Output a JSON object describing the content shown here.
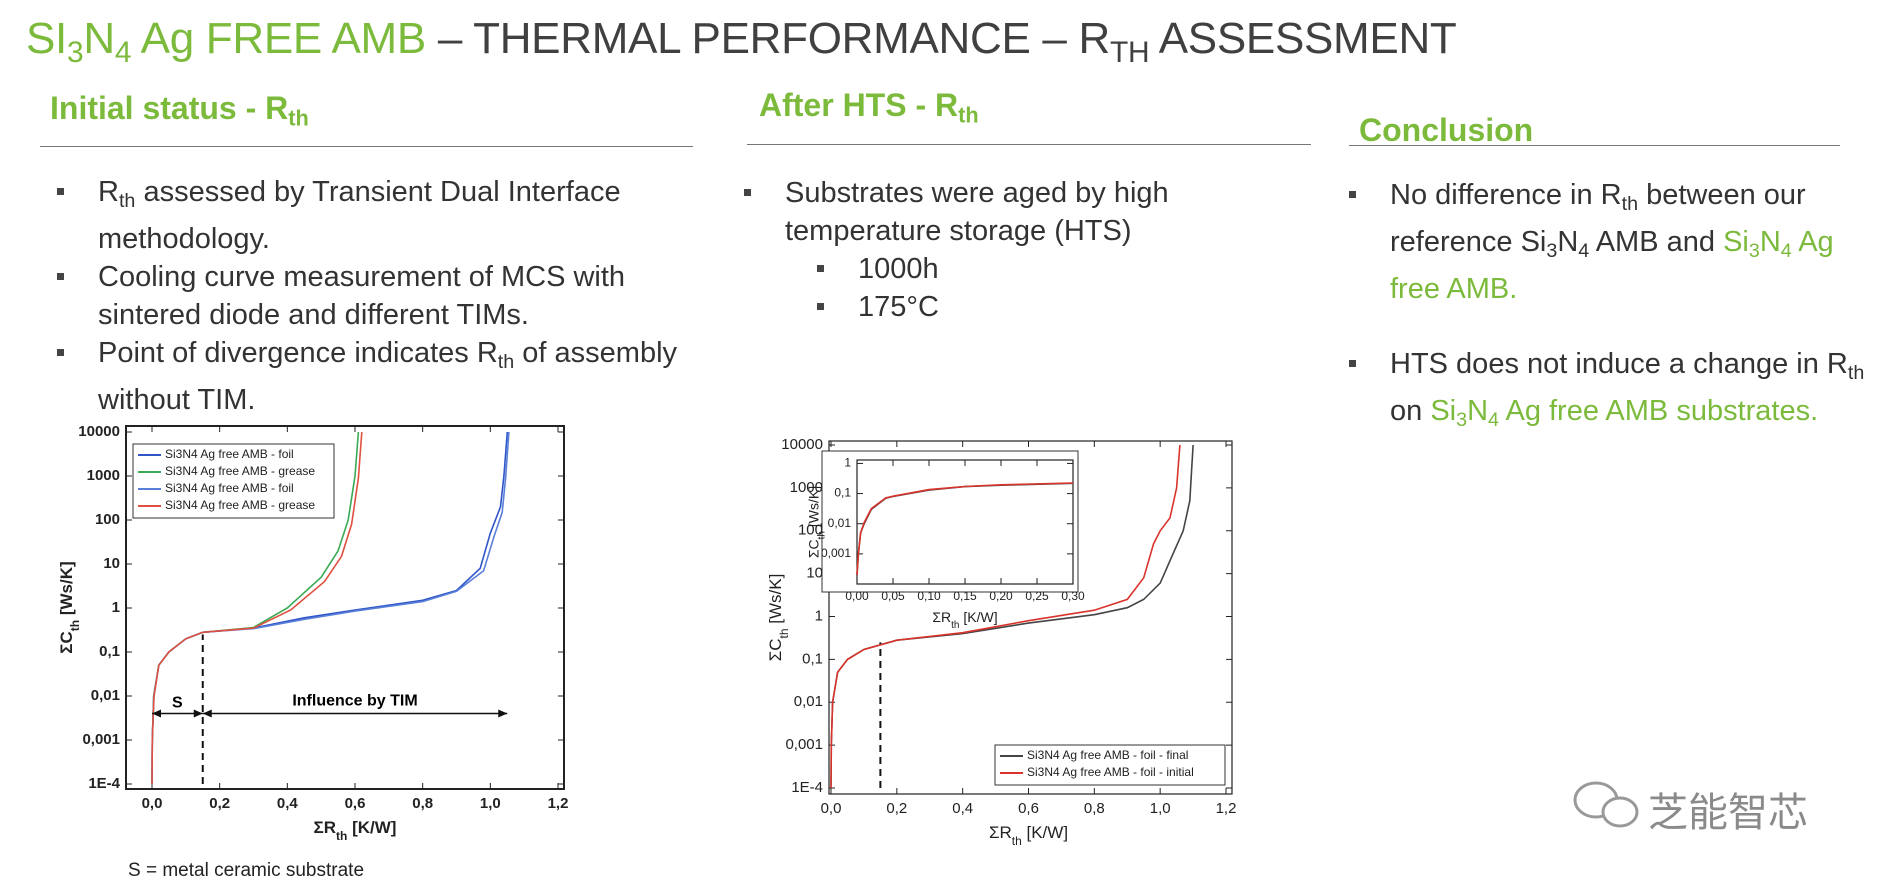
{
  "header": {
    "title": [
      "SI",
      "3",
      "N",
      "4",
      " Ag FREE AMB",
      " – THERMAL PERFORMANCE – R",
      "TH",
      " ASSESSMENT"
    ]
  },
  "sections": [
    {
      "heading": [
        "Initial status - R",
        "th"
      ],
      "bullets": [
        [
          "R",
          "th",
          " assessed by Transient Dual Interface methodology."
        ],
        [
          "Cooling curve measurement of MCS with sintered diode and different TIMs."
        ],
        [
          "Point of divergence indicates R",
          "th",
          " of assembly without TIM."
        ]
      ]
    },
    {
      "heading": [
        "After HTS - R",
        "th"
      ],
      "bullets": [
        [
          "Substrates were aged by high temperature storage (HTS)"
        ]
      ],
      "sub_bullets": [
        "1000h",
        "175°C"
      ]
    },
    {
      "heading": [
        "Conclusion"
      ],
      "bullets": [
        [
          "No difference in R",
          "th",
          " between our reference Si",
          "3",
          "N",
          "4",
          " AMB and ",
          "Si",
          "3",
          "N",
          "4",
          " Ag free AMB."
        ],
        [
          "HTS does not induce a change in R",
          "th",
          " on ",
          "Si",
          "3",
          "N",
          "4",
          " Ag free AMB substrates."
        ]
      ]
    }
  ],
  "caption": "S = metal ceramic substrate",
  "watermark": "芝能智芯",
  "chart_data": [
    {
      "type": "line",
      "log_y": true,
      "legend": "upper left",
      "xlabel": [
        "ΣR",
        "th",
        " [K/W]"
      ],
      "ylabel": [
        "ΣC",
        "th",
        " [Ws/K]"
      ],
      "xlim": [
        0,
        1.2
      ],
      "ylim": [
        0.0001,
        10000
      ],
      "xticks": [
        {
          "value": 0,
          "label": "0,0"
        },
        {
          "value": 0.2,
          "label": "0,2"
        },
        {
          "value": 0.4,
          "label": "0,4"
        },
        {
          "value": 0.6,
          "label": "0,6"
        },
        {
          "value": 0.8,
          "label": "0,8"
        },
        {
          "value": 1.0,
          "label": "1,0"
        },
        {
          "value": 1.2,
          "label": "1,2"
        }
      ],
      "yticks": [
        {
          "value": 0.0001,
          "label": "1E-4"
        },
        {
          "value": 0.001,
          "label": "0,001"
        },
        {
          "value": 0.01,
          "label": "0,01"
        },
        {
          "value": 0.1,
          "label": "0,1"
        },
        1,
        10,
        100,
        1000,
        10000
      ],
      "divider": 0.15,
      "annotations": [
        "S",
        "Influence by TIM"
      ],
      "series": [
        {
          "name": "Si3N4 Ag free AMB - foil",
          "color": "#2f55c9",
          "x": [
            0,
            0.001,
            0.005,
            0.02,
            0.05,
            0.1,
            0.15,
            0.3,
            0.45,
            0.6,
            0.8,
            0.9,
            0.97,
            1.0,
            1.03,
            1.04,
            1.05
          ],
          "values": [
            0.0001,
            0.001,
            0.01,
            0.05,
            0.1,
            0.2,
            0.28,
            0.35,
            0.6,
            0.9,
            1.5,
            2.5,
            8,
            50,
            200,
            1000,
            10000
          ]
        },
        {
          "name": "Si3N4 Ag free AMB - grease",
          "color": "#3aaa55",
          "x": [
            0,
            0.001,
            0.005,
            0.02,
            0.05,
            0.1,
            0.15,
            0.3,
            0.4,
            0.5,
            0.55,
            0.58,
            0.6,
            0.61
          ],
          "values": [
            0.0001,
            0.001,
            0.01,
            0.05,
            0.1,
            0.2,
            0.28,
            0.36,
            1,
            5,
            20,
            100,
            1000,
            10000
          ]
        },
        {
          "name": "Si3N4 Ag free AMB - foil",
          "color": "#5a7fd8",
          "x": [
            0,
            0.001,
            0.006,
            0.02,
            0.05,
            0.1,
            0.15,
            0.3,
            0.45,
            0.6,
            0.8,
            0.9,
            0.98,
            1.01,
            1.035,
            1.045,
            1.055
          ],
          "values": [
            0.0001,
            0.001,
            0.01,
            0.05,
            0.1,
            0.2,
            0.28,
            0.34,
            0.55,
            0.85,
            1.4,
            2.4,
            7,
            40,
            150,
            900,
            10000
          ]
        },
        {
          "name": "Si3N4 Ag free AMB - grease",
          "color": "#e05040",
          "x": [
            0,
            0.001,
            0.006,
            0.02,
            0.05,
            0.1,
            0.15,
            0.3,
            0.41,
            0.51,
            0.56,
            0.59,
            0.61,
            0.62
          ],
          "values": [
            0.0001,
            0.001,
            0.01,
            0.05,
            0.1,
            0.2,
            0.28,
            0.35,
            0.9,
            4,
            15,
            80,
            900,
            10000
          ]
        }
      ]
    },
    {
      "type": "line",
      "log_y": true,
      "legend": "lower right",
      "xlabel": [
        "ΣR",
        "th",
        " [K/W]"
      ],
      "ylabel": [
        "ΣC",
        "th",
        " [Ws/K]"
      ],
      "xlim": [
        0,
        1.2
      ],
      "ylim": [
        0.0001,
        10000
      ],
      "xticks": [
        {
          "value": 0,
          "label": "0,0"
        },
        {
          "value": 0.2,
          "label": "0,2"
        },
        {
          "value": 0.4,
          "label": "0,4"
        },
        {
          "value": 0.6,
          "label": "0,6"
        },
        {
          "value": 0.8,
          "label": "0,8"
        },
        {
          "value": 1.0,
          "label": "1,0"
        },
        {
          "value": 1.2,
          "label": "1,2"
        }
      ],
      "yticks": [
        {
          "value": 0.0001,
          "label": "1E-4"
        },
        {
          "value": 0.001,
          "label": "0,001"
        },
        {
          "value": 0.01,
          "label": "0,01"
        },
        {
          "value": 0.1,
          "label": "0,1"
        },
        1,
        10,
        100,
        1000,
        10000
      ],
      "divider": 0.15,
      "series": [
        {
          "name": "Si3N4 Ag free AMB - foil - final",
          "color": "#444444",
          "x": [
            0,
            0.001,
            0.005,
            0.02,
            0.05,
            0.1,
            0.2,
            0.4,
            0.6,
            0.8,
            0.9,
            0.95,
            1.0,
            1.04,
            1.07,
            1.09,
            1.1
          ],
          "values": [
            0.0001,
            0.001,
            0.01,
            0.05,
            0.1,
            0.17,
            0.28,
            0.4,
            0.7,
            1.1,
            1.6,
            2.5,
            6,
            30,
            100,
            500,
            10000
          ]
        },
        {
          "name": "Si3N4 Ag free AMB - foil - initial",
          "color": "#d9342b",
          "x": [
            0,
            0.001,
            0.005,
            0.02,
            0.05,
            0.1,
            0.2,
            0.4,
            0.6,
            0.8,
            0.9,
            0.95,
            0.98,
            1.0,
            1.03,
            1.05,
            1.06
          ],
          "values": [
            0.0001,
            0.001,
            0.01,
            0.05,
            0.1,
            0.17,
            0.28,
            0.42,
            0.8,
            1.4,
            2.5,
            8,
            50,
            100,
            200,
            1000,
            10000
          ]
        }
      ]
    },
    {
      "type": "line",
      "log_y": true,
      "xlabel": [
        "ΣR",
        "th",
        " [K/W]"
      ],
      "ylabel": [
        "ΣC",
        "th",
        " [Ws/K]"
      ],
      "xlim": [
        0,
        0.3
      ],
      "ylim": [
        0.0001,
        1.3
      ],
      "xticks": [
        {
          "value": 0,
          "label": "0,00"
        },
        {
          "value": 0.05,
          "label": "0,05"
        },
        {
          "value": 0.1,
          "label": "0,10"
        },
        {
          "value": 0.15,
          "label": "0,15"
        },
        {
          "value": 0.2,
          "label": "0,20"
        },
        {
          "value": 0.25,
          "label": "0,25"
        },
        {
          "value": 0.3,
          "label": "0,30"
        }
      ],
      "yticks": [
        {
          "value": 0.001,
          "label": "0,001"
        },
        {
          "value": 0.01,
          "label": "0,01"
        },
        {
          "value": 0.1,
          "label": "0,1"
        },
        1
      ],
      "series": [
        {
          "name": "Si3N4 Ag free AMB - foil - final",
          "color": "#444444",
          "x": [
            0,
            0.002,
            0.005,
            0.01,
            0.02,
            0.04,
            0.05,
            0.1,
            0.15,
            0.2,
            0.3
          ],
          "values": [
            0.0002,
            0.001,
            0.005,
            0.01,
            0.03,
            0.07,
            0.08,
            0.13,
            0.17,
            0.19,
            0.22
          ]
        },
        {
          "name": "Si3N4 Ag free AMB - foil - initial",
          "color": "#d9342b",
          "x": [
            0,
            0.002,
            0.005,
            0.01,
            0.02,
            0.04,
            0.05,
            0.1,
            0.15,
            0.2,
            0.3
          ],
          "values": [
            0.0002,
            0.001,
            0.005,
            0.011,
            0.032,
            0.072,
            0.082,
            0.135,
            0.172,
            0.195,
            0.225
          ]
        }
      ]
    }
  ]
}
